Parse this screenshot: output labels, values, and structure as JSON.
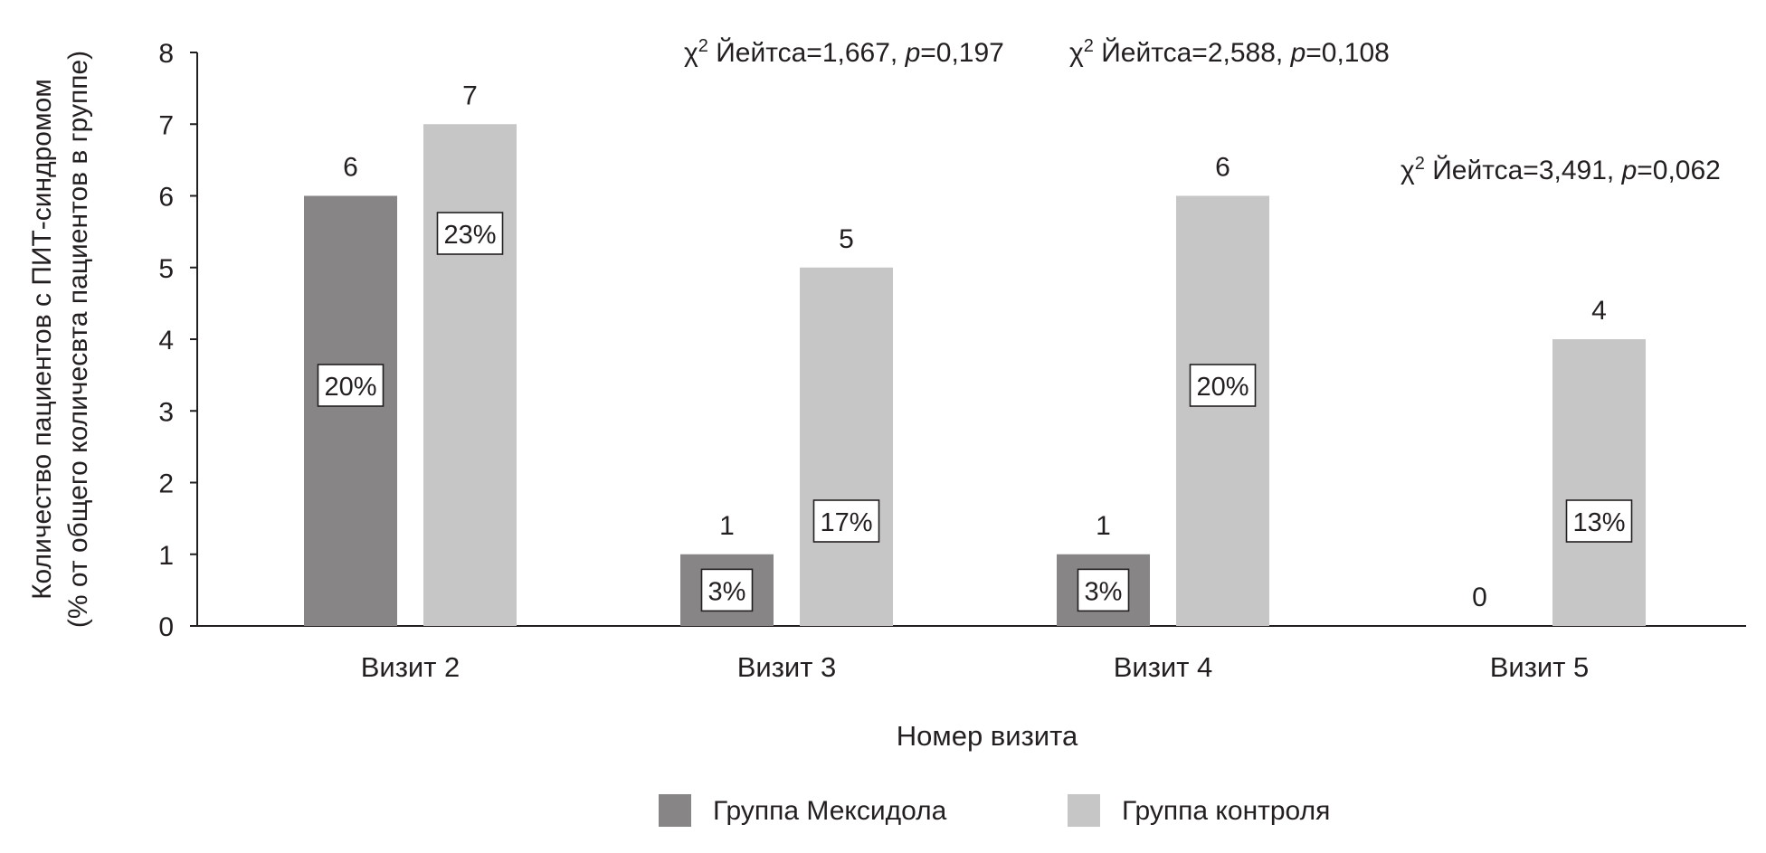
{
  "chart_data": {
    "type": "bar",
    "categories": [
      "Визит 2",
      "Визит 3",
      "Визит 4",
      "Визит 5"
    ],
    "series": [
      {
        "name": "Группа Мексидола",
        "color": "#878586",
        "values": [
          6,
          1,
          1,
          0
        ],
        "percent_labels": [
          "20%",
          "3%",
          "3%",
          ""
        ]
      },
      {
        "name": "Группа контроля",
        "color": "#c6c6c6",
        "values": [
          7,
          5,
          6,
          4
        ],
        "percent_labels": [
          "23%",
          "17%",
          "20%",
          "13%"
        ]
      }
    ],
    "ylim": [
      0,
      8
    ],
    "yticks": [
      0,
      1,
      2,
      3,
      4,
      5,
      6,
      7,
      8
    ],
    "ylabel_line1": "Количество пациентов с ПИТ-синдромом",
    "ylabel_line2": "(% от общего количесвта пациентов в группе)",
    "xlabel": "Номер визита",
    "grid": false,
    "legend_position": "bottom-center",
    "annotations": [
      {
        "category": "Визит 3",
        "chi_symbol": "χ",
        "sup": "2",
        "label": "Йейтса=1,667,",
        "p_symbol": "p",
        "p_value": "=0,197"
      },
      {
        "category": "Визит 4",
        "chi_symbol": "χ",
        "sup": "2",
        "label": "Йейтса=2,588,",
        "p_symbol": "p",
        "p_value": "=0,108"
      },
      {
        "category": "Визит 5",
        "chi_symbol": "χ",
        "sup": "2",
        "label": "Йейтса=3,491,",
        "p_symbol": "p",
        "p_value": "=0,062"
      }
    ]
  }
}
